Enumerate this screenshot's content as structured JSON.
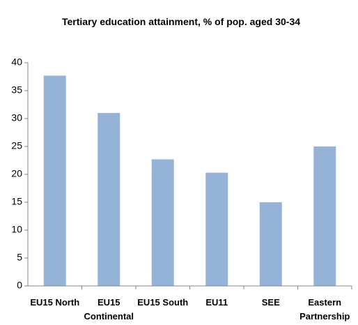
{
  "chart_data": {
    "type": "bar",
    "title": "Tertiary education attainment, % of pop. aged 30-34",
    "categories": [
      "EU15 North",
      "EU15 Continental",
      "EU15 South",
      "EU11",
      "SEE",
      "Eastern Partnership"
    ],
    "values": [
      37.7,
      31,
      22.7,
      20.3,
      15,
      25
    ],
    "color": "#95b3d7",
    "ylim": [
      0,
      40
    ],
    "yticks": [
      0,
      5,
      10,
      15,
      20,
      25,
      30,
      35,
      40
    ],
    "grid": false
  }
}
